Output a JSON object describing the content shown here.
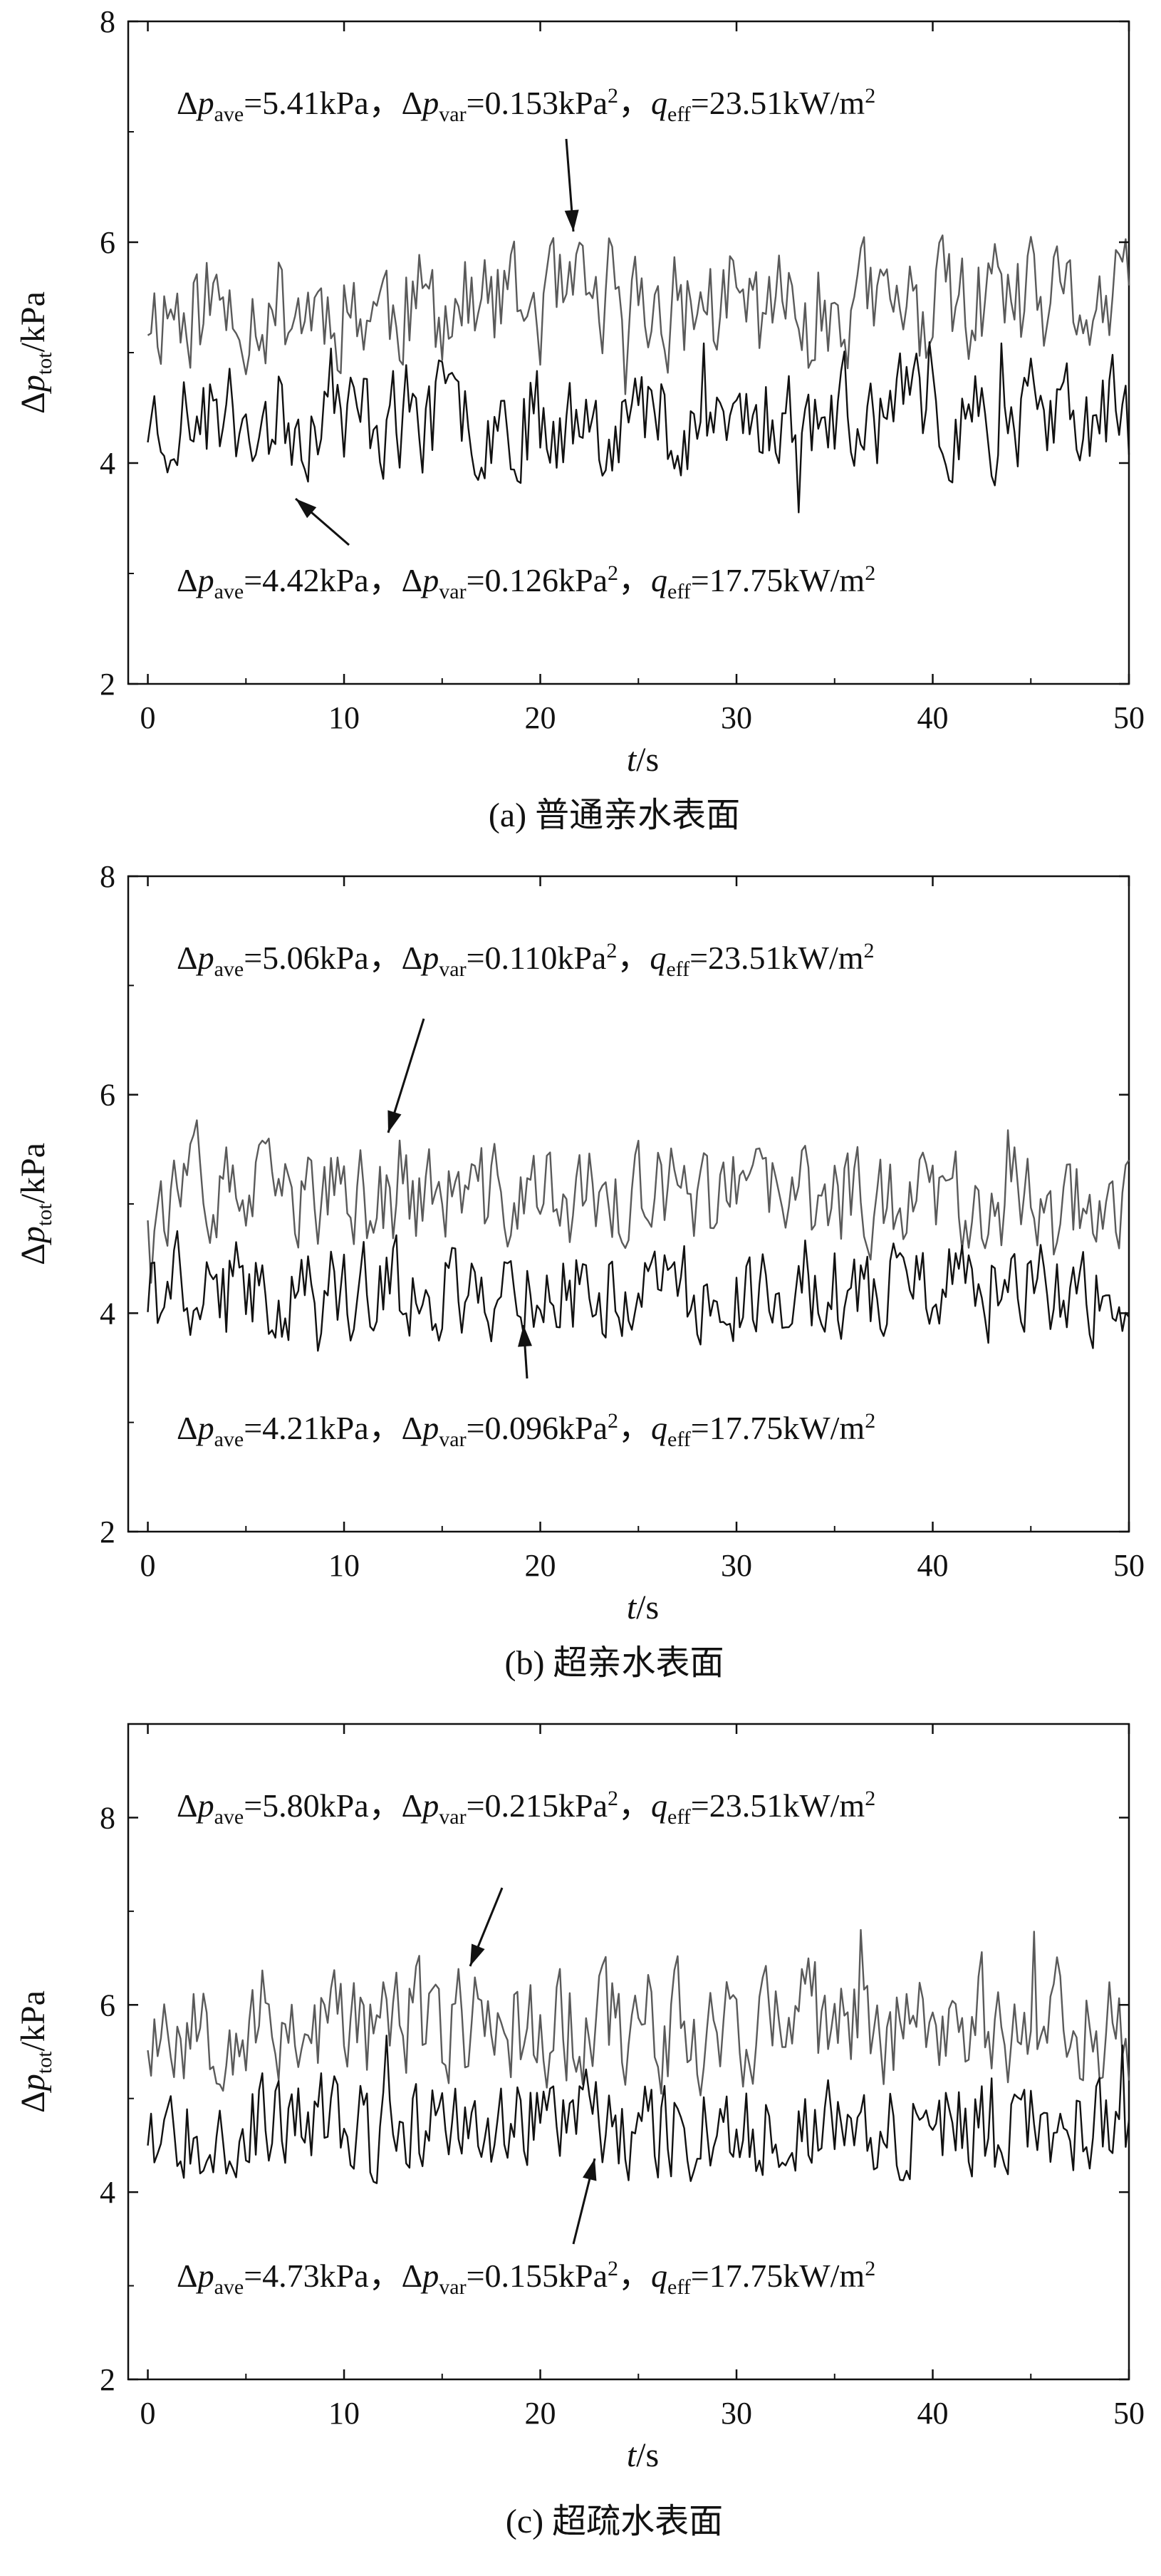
{
  "chart_data": [
    {
      "type": "line",
      "caption": "(a) 普通亲水表面",
      "xlabel": "t/s",
      "ylabel": "Δptot/kPa",
      "xlim": [
        -1,
        50
      ],
      "ylim": [
        2,
        8
      ],
      "xticks": [
        0,
        10,
        20,
        30,
        40,
        50
      ],
      "yticks": [
        2,
        4,
        6,
        8
      ],
      "series": [
        {
          "color": "#5a5a5a",
          "mean": 5.41,
          "amp": 0.75,
          "seed": 11
        },
        {
          "color": "#111111",
          "mean": 4.42,
          "amp": 0.7,
          "seed": 23
        }
      ],
      "annotations": [
        {
          "ave": "5.41",
          "var": "0.153",
          "q": "23.51",
          "pos": "top"
        },
        {
          "ave": "4.42",
          "var": "0.126",
          "q": "17.75",
          "pos": "bottom"
        }
      ]
    },
    {
      "type": "line",
      "caption": "(b) 超亲水表面",
      "xlabel": "t/s",
      "ylabel": "Δptot/kPa",
      "xlim": [
        -1,
        50
      ],
      "ylim": [
        2,
        8
      ],
      "xticks": [
        0,
        10,
        20,
        30,
        40,
        50
      ],
      "yticks": [
        2,
        4,
        6,
        8
      ],
      "series": [
        {
          "color": "#5a5a5a",
          "mean": 5.06,
          "amp": 0.65,
          "seed": 37
        },
        {
          "color": "#111111",
          "mean": 4.21,
          "amp": 0.62,
          "seed": 41
        }
      ],
      "annotations": [
        {
          "ave": "5.06",
          "var": "0.110",
          "q": "23.51",
          "pos": "top"
        },
        {
          "ave": "4.21",
          "var": "0.096",
          "q": "17.75",
          "pos": "bottom"
        }
      ]
    },
    {
      "type": "line",
      "caption": "(c) 超疏水表面",
      "xlabel": "t/s",
      "ylabel": "Δptot/kPa",
      "xlim": [
        -1,
        50
      ],
      "ylim": [
        2,
        9
      ],
      "xticks": [
        0,
        10,
        20,
        30,
        40,
        50
      ],
      "yticks": [
        2,
        4,
        6,
        8
      ],
      "series": [
        {
          "color": "#5a5a5a",
          "mean": 5.8,
          "amp": 0.9,
          "seed": 53
        },
        {
          "color": "#111111",
          "mean": 4.73,
          "amp": 0.75,
          "seed": 67
        }
      ],
      "annotations": [
        {
          "ave": "5.80",
          "var": "0.215",
          "q": "23.51",
          "pos": "top"
        },
        {
          "ave": "4.73",
          "var": "0.155",
          "q": "17.75",
          "pos": "bottom"
        }
      ]
    }
  ]
}
